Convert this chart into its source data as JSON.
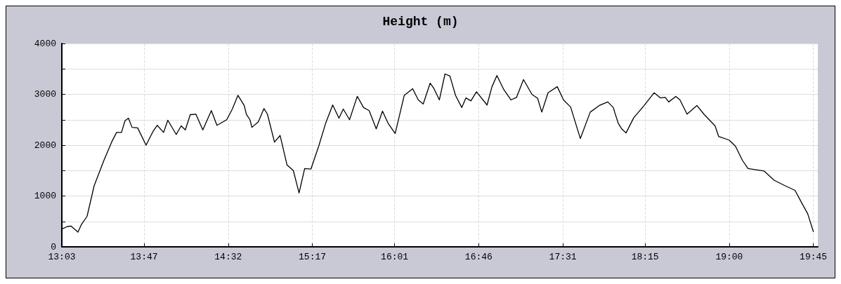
{
  "chart_data": {
    "type": "line",
    "title": "Height (m)",
    "x": [
      13.05,
      13.1,
      13.131,
      13.194,
      13.225,
      13.275,
      13.338,
      13.425,
      13.494,
      13.538,
      13.582,
      13.613,
      13.644,
      13.676,
      13.726,
      13.801,
      13.863,
      13.901,
      13.957,
      13.995,
      14.07,
      14.114,
      14.151,
      14.195,
      14.245,
      14.307,
      14.383,
      14.433,
      14.52,
      14.57,
      14.62,
      14.676,
      14.695,
      14.727,
      14.745,
      14.802,
      14.852,
      14.883,
      14.946,
      14.996,
      15.058,
      15.114,
      15.165,
      15.215,
      15.271,
      15.34,
      15.402,
      15.465,
      15.521,
      15.559,
      15.615,
      15.684,
      15.74,
      15.79,
      15.853,
      15.909,
      15.959,
      16.022,
      16.103,
      16.178,
      16.228,
      16.272,
      16.334,
      16.366,
      16.416,
      16.466,
      16.51,
      16.56,
      16.616,
      16.653,
      16.697,
      16.747,
      16.841,
      16.885,
      16.929,
      16.991,
      17.054,
      17.104,
      17.166,
      17.241,
      17.292,
      17.329,
      17.385,
      17.467,
      17.523,
      17.586,
      17.673,
      17.761,
      17.842,
      17.917,
      17.967,
      17.98,
      18.011,
      18.042,
      18.08,
      18.149,
      18.242,
      18.33,
      18.386,
      18.43,
      18.461,
      18.524,
      18.561,
      18.624,
      18.712,
      18.774,
      18.874,
      18.906,
      18.999,
      19.056,
      19.118,
      19.168,
      19.312,
      19.4,
      19.5,
      19.587,
      19.65,
      19.7,
      19.75
    ],
    "series": [
      {
        "color": "#000000",
        "values": [
          350,
          400,
          410,
          290,
          440,
          600,
          1200,
          1700,
          2060,
          2250,
          2250,
          2480,
          2530,
          2350,
          2340,
          2000,
          2270,
          2390,
          2250,
          2490,
          2210,
          2380,
          2300,
          2600,
          2610,
          2300,
          2680,
          2390,
          2500,
          2710,
          2980,
          2780,
          2610,
          2500,
          2350,
          2460,
          2720,
          2610,
          2060,
          2190,
          1610,
          1500,
          1060,
          1540,
          1530,
          1980,
          2430,
          2790,
          2530,
          2710,
          2500,
          2960,
          2740,
          2680,
          2320,
          2670,
          2430,
          2230,
          2980,
          3110,
          2890,
          2810,
          3220,
          3120,
          2890,
          3400,
          3360,
          2980,
          2740,
          2930,
          2870,
          3050,
          2790,
          3150,
          3370,
          3090,
          2890,
          2940,
          3290,
          3000,
          2920,
          2650,
          3030,
          3150,
          2890,
          2750,
          2130,
          2650,
          2780,
          2850,
          2740,
          2640,
          2430,
          2320,
          2240,
          2540,
          2780,
          3030,
          2930,
          2940,
          2850,
          2960,
          2890,
          2610,
          2780,
          2610,
          2380,
          2170,
          2100,
          1980,
          1700,
          1540,
          1490,
          1310,
          1200,
          1110,
          850,
          650,
          300
        ]
      }
    ],
    "xlim": [
      13.05,
      19.79
    ],
    "xticks": [
      {
        "value": 13.05,
        "label": "13:03"
      },
      {
        "value": 13.7833,
        "label": "13:47"
      },
      {
        "value": 14.5333,
        "label": "14:32"
      },
      {
        "value": 15.2833,
        "label": "15:17"
      },
      {
        "value": 16.0167,
        "label": "16:01"
      },
      {
        "value": 16.7667,
        "label": "16:46"
      },
      {
        "value": 17.5167,
        "label": "17:31"
      },
      {
        "value": 18.25,
        "label": "18:15"
      },
      {
        "value": 19,
        "label": "19:00"
      },
      {
        "value": 19.75,
        "label": "19:45"
      }
    ],
    "ylim": [
      0,
      4000
    ],
    "yticks": [
      0,
      {
        "value": 500,
        "label": null
      },
      1000,
      {
        "value": 1500,
        "label": null
      },
      2000,
      {
        "value": 2500,
        "label": null
      },
      3000,
      {
        "value": 3500,
        "label": null
      },
      4000
    ],
    "grid": true,
    "marker": "none",
    "line_style": "solid"
  }
}
